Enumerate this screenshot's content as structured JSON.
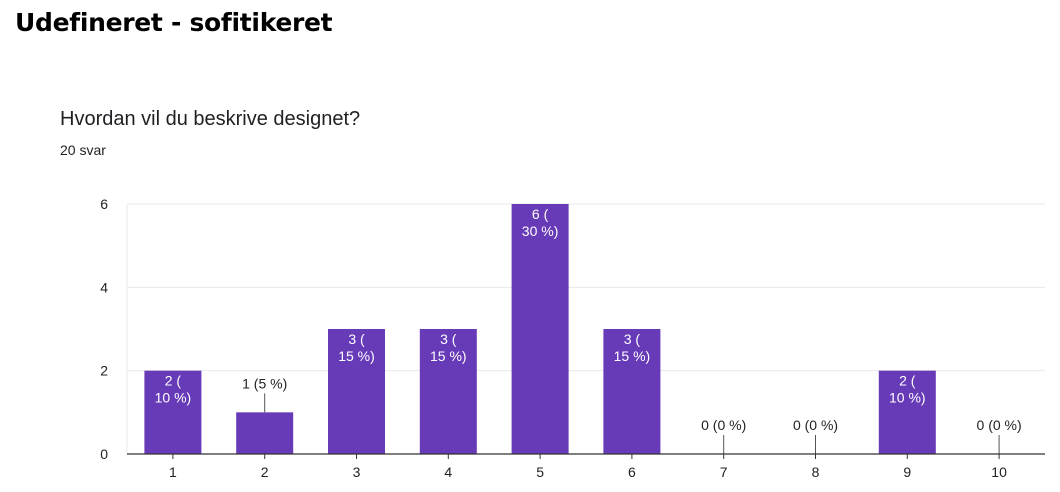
{
  "page": {
    "heading": "Udefineret - sofitikeret"
  },
  "question": {
    "title": "Hvordan vil du beskrive designet?",
    "responses": "20 svar"
  },
  "colors": {
    "bar": "#673ab7",
    "grid": "#e8e8e8",
    "axis": "#333333"
  },
  "chart_data": {
    "type": "bar",
    "title": "Hvordan vil du beskrive designet?",
    "categories": [
      "1",
      "2",
      "3",
      "4",
      "5",
      "6",
      "7",
      "8",
      "9",
      "10"
    ],
    "values": [
      2,
      1,
      3,
      3,
      6,
      3,
      0,
      0,
      2,
      0
    ],
    "labels": [
      [
        "2 (",
        "10 %)"
      ],
      [
        "1 (5 %)"
      ],
      [
        "3 (",
        "15 %)"
      ],
      [
        "3 (",
        "15 %)"
      ],
      [
        "6 (",
        "30 %)"
      ],
      [
        "3 (",
        "15 %)"
      ],
      [
        "0 (0 %)"
      ],
      [
        "0 (0 %)"
      ],
      [
        "2 (",
        "10 %)"
      ],
      [
        "0 (0 %)"
      ]
    ],
    "yticks": [
      0,
      2,
      4,
      6
    ],
    "ylim": [
      0,
      6
    ],
    "grid": true,
    "legend": "none"
  }
}
